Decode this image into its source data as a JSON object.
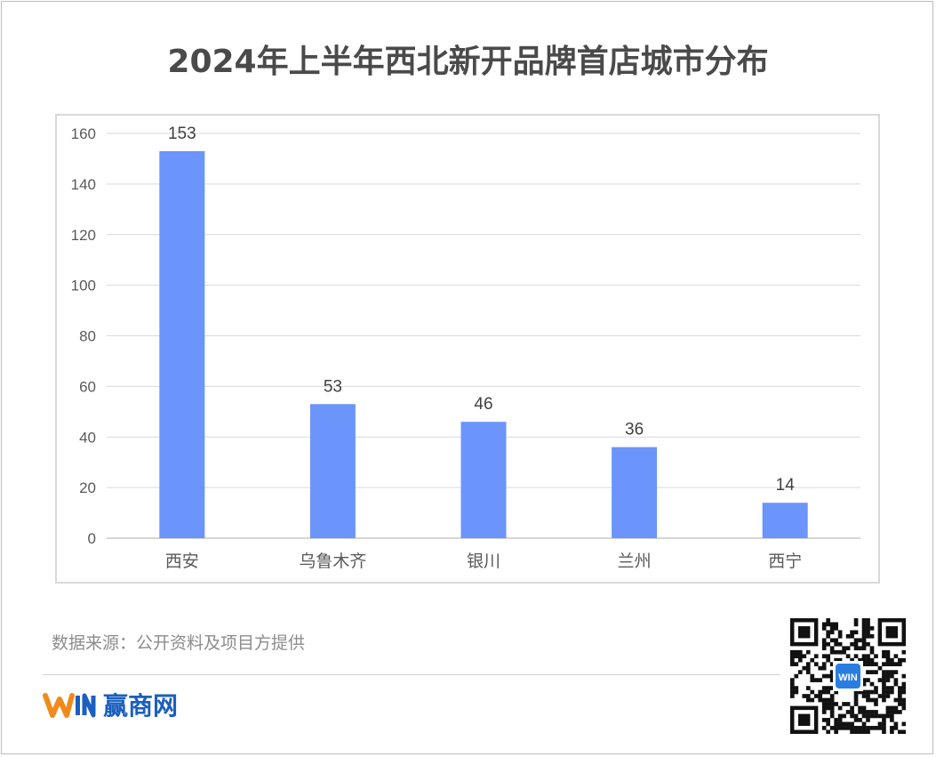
{
  "title": "2024年上半年西北新开品牌首店城市分布",
  "source_note": "数据来源：公开资料及项目方提供",
  "brand": {
    "name": "赢商网",
    "logo_text": "WIN",
    "qr_center_text": "WIN"
  },
  "colors": {
    "bar": "#6b95fb",
    "title": "#4a4a4a",
    "grid": "#d9d9d9",
    "brand_blue": "#1a5fbf",
    "brand_orange": "#f08a1c"
  },
  "chart_data": {
    "type": "bar",
    "title": "2024年上半年西北新开品牌首店城市分布",
    "xlabel": "",
    "ylabel": "",
    "categories": [
      "西安",
      "乌鲁木齐",
      "银川",
      "兰州",
      "西宁"
    ],
    "values": [
      153,
      53,
      46,
      36,
      14
    ],
    "data_labels": [
      "153",
      "53",
      "46",
      "36",
      "14"
    ],
    "ylim": [
      0,
      160
    ],
    "yticks": [
      0,
      20,
      40,
      60,
      80,
      100,
      120,
      140,
      160
    ],
    "grid": true,
    "legend": "none"
  }
}
